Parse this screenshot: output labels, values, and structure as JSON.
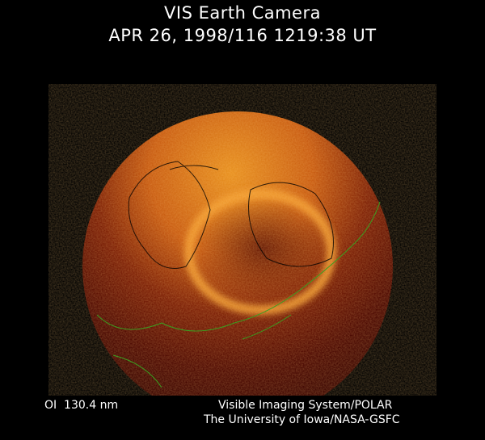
{
  "header": {
    "title": "VIS Earth Camera",
    "timestamp": "APR 26, 1998/116 1219:38 UT"
  },
  "footer": {
    "filter": "OI  130.4 nm",
    "credit_line1": "Visible Imaging System/POLAR",
    "credit_line2": "The University of Iowa/NASA-GSFC"
  },
  "colors": {
    "background": "#000000",
    "dayside_glow": "#e07a1a",
    "nightside": "#4a0600",
    "aurora": "#ffb040",
    "coastline_north": "#000000",
    "coastline_south": "#3aa020"
  }
}
